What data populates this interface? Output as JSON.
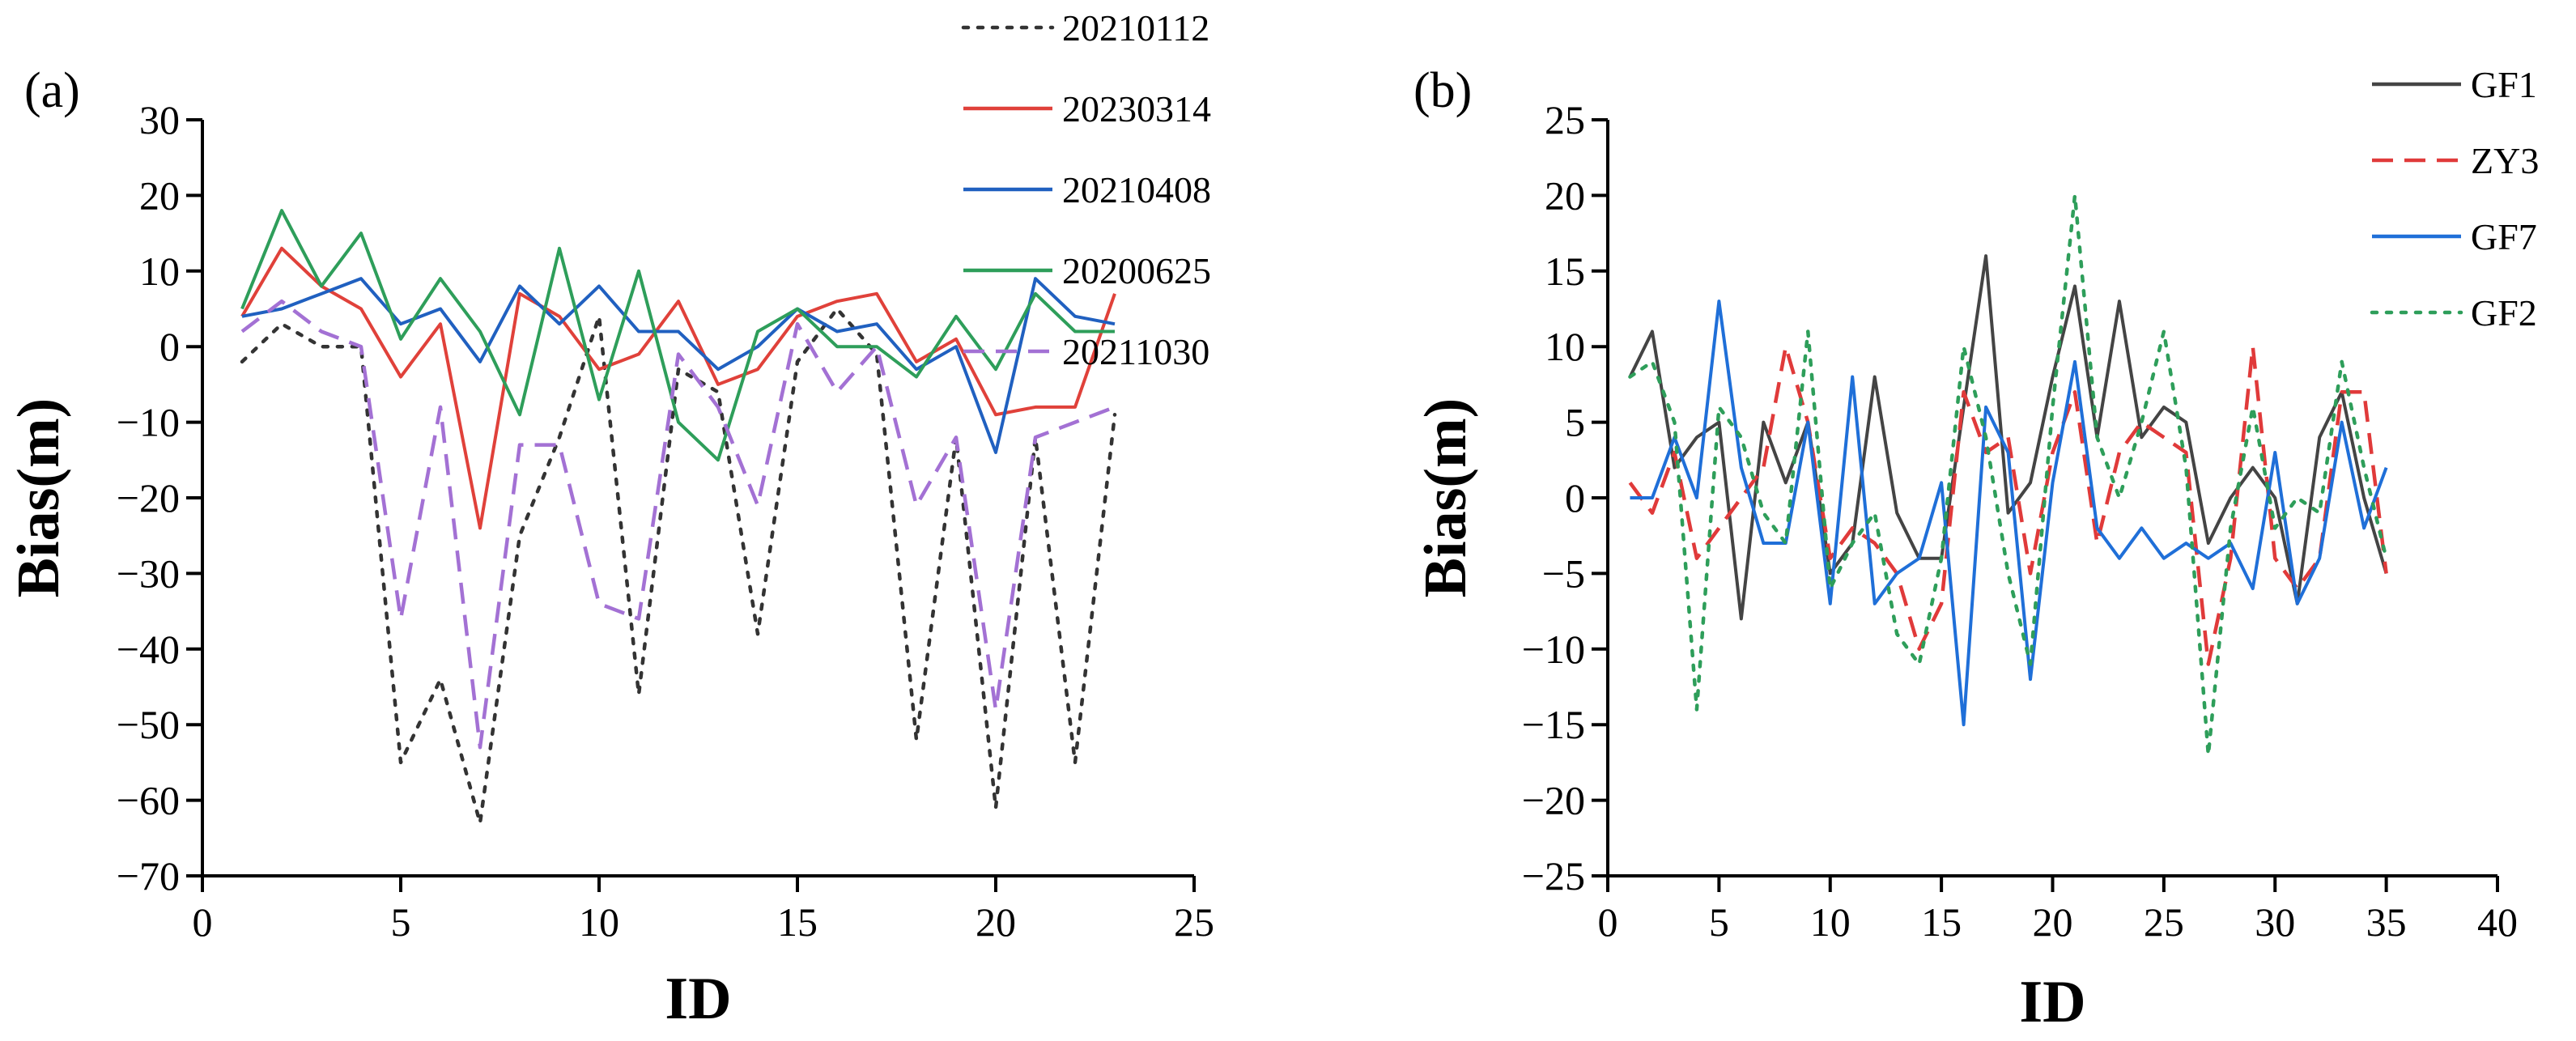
{
  "chart_data": [
    {
      "panel_label": "(a)",
      "type": "line",
      "xlabel": "ID",
      "ylabel": "Bias(m)",
      "xlim": [
        0,
        25
      ],
      "ylim": [
        -70,
        30
      ],
      "xticks": [
        0,
        5,
        10,
        15,
        20,
        25
      ],
      "yticks": [
        30,
        20,
        10,
        0,
        -10,
        -20,
        -30,
        -40,
        -50,
        -60,
        -70
      ],
      "xtick_labels": [
        "0",
        "5",
        "10",
        "15",
        "20",
        "25"
      ],
      "ytick_labels": [
        "30",
        "20",
        "10",
        "0",
        "−10",
        "−20",
        "−30",
        "−40",
        "−50",
        "−60",
        "−70"
      ],
      "legend_position": "top-right",
      "x": [
        1,
        2,
        3,
        4,
        5,
        6,
        7,
        8,
        9,
        10,
        11,
        12,
        13,
        14,
        15,
        16,
        17,
        18,
        19,
        20,
        21,
        22,
        23
      ],
      "series": [
        {
          "name": "20210112",
          "color": "#333333",
          "style": "dotted",
          "values": [
            -2,
            3,
            0,
            0,
            -55,
            -44,
            -63,
            -25,
            -12,
            4,
            -46,
            -3,
            -6,
            -38,
            -2,
            5,
            -1,
            -52,
            -12,
            -61,
            -12,
            -55,
            -9
          ]
        },
        {
          "name": "20230314",
          "color": "#e0413a",
          "style": "solid",
          "values": [
            4,
            13,
            8,
            5,
            -4,
            3,
            -24,
            7,
            4,
            -3,
            -1,
            6,
            -5,
            -3,
            4,
            6,
            7,
            -2,
            1,
            -9,
            -8,
            -8,
            7
          ]
        },
        {
          "name": "20210408",
          "color": "#2060c0",
          "style": "solid",
          "values": [
            4,
            5,
            7,
            9,
            3,
            5,
            -2,
            8,
            3,
            8,
            2,
            2,
            -3,
            0,
            5,
            2,
            3,
            -3,
            0,
            -14,
            9,
            4,
            3
          ]
        },
        {
          "name": "20200625",
          "color": "#2e9e5a",
          "style": "solid",
          "values": [
            5,
            18,
            8,
            15,
            1,
            9,
            2,
            -9,
            13,
            -7,
            10,
            -10,
            -15,
            2,
            5,
            0,
            0,
            -4,
            4,
            -3,
            7,
            2,
            2
          ]
        },
        {
          "name": "20211030",
          "color": "#a371d4",
          "style": "dashed",
          "values": [
            2,
            6,
            2,
            0,
            -36,
            -8,
            -53,
            -13,
            -13,
            -34,
            -36,
            -1,
            -8,
            -21,
            3,
            -6,
            0,
            -21,
            -12,
            -48,
            -12,
            -10,
            -8
          ]
        }
      ]
    },
    {
      "panel_label": "(b)",
      "type": "line",
      "xlabel": "ID",
      "ylabel": "Bias(m)",
      "xlim": [
        0,
        40
      ],
      "ylim": [
        -25,
        25
      ],
      "xticks": [
        0,
        5,
        10,
        15,
        20,
        25,
        30,
        35,
        40
      ],
      "yticks": [
        25,
        20,
        15,
        10,
        5,
        0,
        -5,
        -10,
        -15,
        -20,
        -25
      ],
      "xtick_labels": [
        "0",
        "5",
        "10",
        "15",
        "20",
        "25",
        "30",
        "35",
        "40"
      ],
      "ytick_labels": [
        "25",
        "20",
        "15",
        "10",
        "5",
        "0",
        "−5",
        "−10",
        "−15",
        "−20",
        "−25"
      ],
      "legend_position": "top-right",
      "x": [
        1,
        2,
        3,
        4,
        5,
        6,
        7,
        8,
        9,
        10,
        11,
        12,
        13,
        14,
        15,
        16,
        17,
        18,
        19,
        20,
        21,
        22,
        23,
        24,
        25,
        26,
        27,
        28,
        29,
        30,
        31,
        32,
        33,
        34,
        35
      ],
      "series": [
        {
          "name": "GF1",
          "color": "#444444",
          "style": "solid",
          "values": [
            8,
            11,
            2,
            4,
            5,
            -8,
            5,
            1,
            5,
            -5,
            -3,
            8,
            -1,
            -4,
            -4,
            6,
            16,
            -1,
            1,
            8,
            14,
            4,
            13,
            4,
            6,
            5,
            -3,
            0,
            2,
            0,
            -7,
            4,
            7,
            0,
            -5
          ]
        },
        {
          "name": "ZY3",
          "color": "#e03a3a",
          "style": "dashed",
          "values": [
            1,
            -1,
            3,
            -4,
            -2,
            0,
            2,
            10,
            5,
            -4,
            -2,
            -3,
            -5,
            -10,
            -7,
            7,
            3,
            4,
            -5,
            3,
            7,
            -3,
            3,
            5,
            4,
            3,
            -11,
            -4,
            10,
            -4,
            -6,
            -4,
            7,
            7,
            -5
          ]
        },
        {
          "name": "GF7",
          "color": "#1f6fd8",
          "style": "solid",
          "values": [
            0,
            0,
            4,
            0,
            13,
            2,
            -3,
            -3,
            5,
            -7,
            8,
            -7,
            -5,
            -4,
            1,
            -15,
            6,
            3,
            -12,
            1,
            9,
            -2,
            -4,
            -2,
            -4,
            -3,
            -4,
            -3,
            -6,
            3,
            -7,
            -4,
            5,
            -2,
            2
          ]
        },
        {
          "name": "GF2",
          "color": "#2e9e5a",
          "style": "dotted",
          "values": [
            8,
            9,
            5,
            -14,
            6,
            4,
            -1,
            -3,
            11,
            -6,
            -3,
            -1,
            -9,
            -11,
            -4,
            10,
            4,
            -5,
            -11,
            6,
            20,
            4,
            0,
            5,
            11,
            2,
            -17,
            -2,
            6,
            -2,
            0,
            -1,
            9,
            2,
            -4
          ]
        }
      ]
    }
  ]
}
